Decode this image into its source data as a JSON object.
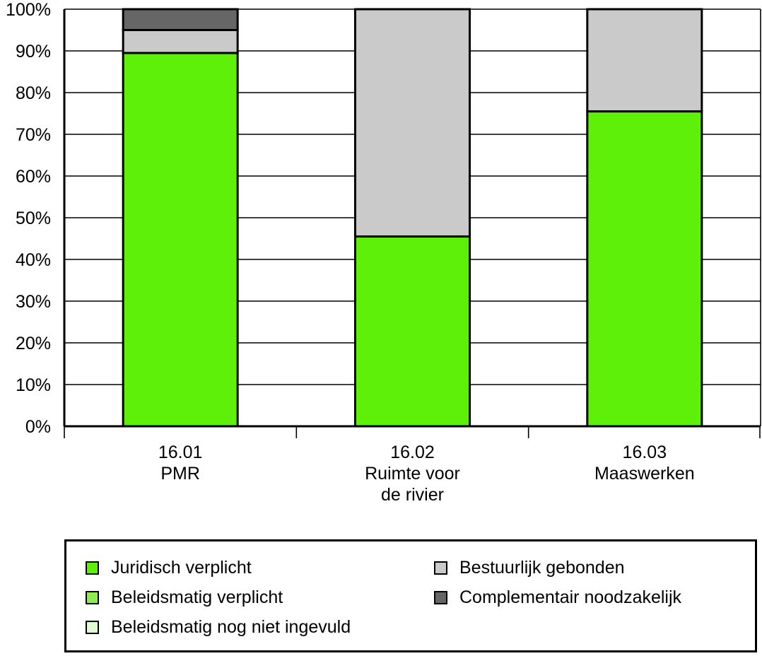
{
  "chart_data": {
    "type": "bar",
    "stacked": true,
    "categories": [
      [
        "16.01",
        "PMR"
      ],
      [
        "16.02",
        "Ruimte voor",
        "de rivier"
      ],
      [
        "16.03",
        "Maaswerken"
      ]
    ],
    "y_tick_labels": [
      "0%",
      "10%",
      "20%",
      "30%",
      "40%",
      "50%",
      "60%",
      "70%",
      "80%",
      "90%",
      "100%"
    ],
    "ylim": [
      0,
      100
    ],
    "grid": true,
    "legend_position": "bottom",
    "series": [
      {
        "name": "Juridisch verplicht",
        "color": "#5ff00a",
        "values": [
          89.5,
          45.5,
          75.5
        ]
      },
      {
        "name": "Beleidsmatig verplicht",
        "color": "#8fec50",
        "values": [
          0,
          0,
          0
        ]
      },
      {
        "name": "Beleidsmatig nog niet ingevuld",
        "color": "#e0fbd2",
        "values": [
          0,
          0,
          0
        ]
      },
      {
        "name": "Bestuurlijk gebonden",
        "color": "#cacaca",
        "values": [
          5.5,
          54.5,
          24.5
        ]
      },
      {
        "name": "Complementair noodzakelijk",
        "color": "#666666",
        "values": [
          5,
          0,
          0
        ]
      }
    ],
    "legend_order": [
      "Juridisch verplicht",
      "Bestuurlijk gebonden",
      "Beleidsmatig verplicht",
      "Complementair noodzakelijk",
      "Beleidsmatig nog niet ingevuld"
    ]
  }
}
